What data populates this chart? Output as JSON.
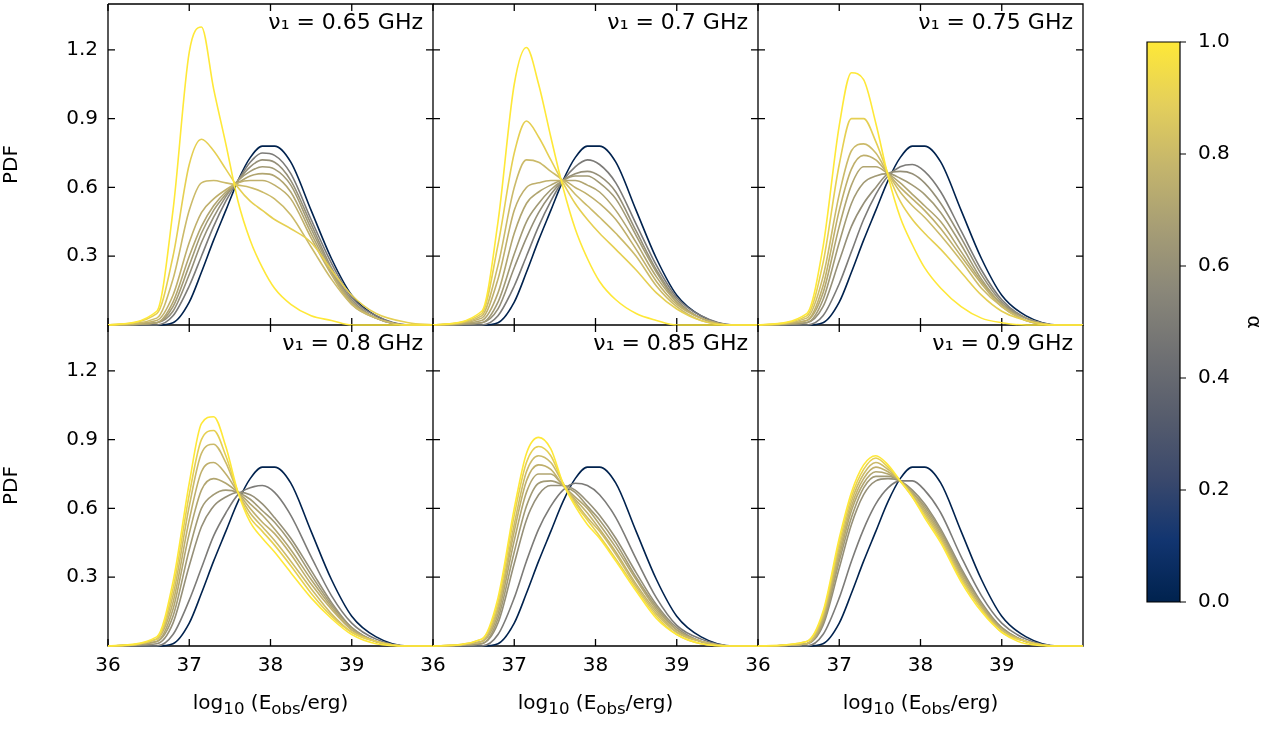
{
  "chart_data": [
    {
      "type": "line",
      "annotations": [
        "ν₁ = 0.65 GHz"
      ],
      "ylabel": "PDF",
      "tick_labels": "y",
      "xlim": [
        36,
        40
      ],
      "xticks": [
        36,
        37,
        38,
        39
      ],
      "ylim": [
        0,
        1.4
      ],
      "yticks": [
        0.3,
        0.6,
        0.9,
        1.2
      ],
      "x": [
        36,
        36.6,
        36.8,
        37.0,
        37.15,
        37.3,
        37.45,
        37.6,
        37.75,
        37.9,
        38.05,
        38.25,
        38.5,
        38.75,
        39.0,
        39.3,
        39.7,
        40
      ],
      "series": [
        {
          "color": "#00224e",
          "values": [
            0,
            0,
            0.01,
            0.1,
            0.23,
            0.37,
            0.5,
            0.63,
            0.73,
            0.78,
            0.78,
            0.71,
            0.5,
            0.29,
            0.13,
            0.04,
            0,
            0
          ]
        },
        {
          "color": "#7c7b78",
          "values": [
            0,
            0,
            0.04,
            0.17,
            0.3,
            0.43,
            0.54,
            0.63,
            0.71,
            0.75,
            0.74,
            0.66,
            0.46,
            0.27,
            0.12,
            0.04,
            0,
            0
          ]
        },
        {
          "color": "#958f78",
          "values": [
            0,
            0.01,
            0.06,
            0.22,
            0.36,
            0.47,
            0.56,
            0.63,
            0.69,
            0.72,
            0.71,
            0.63,
            0.44,
            0.25,
            0.11,
            0.03,
            0,
            0
          ]
        },
        {
          "color": "#a29a75",
          "values": [
            0,
            0.01,
            0.08,
            0.26,
            0.4,
            0.5,
            0.57,
            0.63,
            0.67,
            0.69,
            0.68,
            0.61,
            0.42,
            0.24,
            0.1,
            0.03,
            0,
            0
          ]
        },
        {
          "color": "#b1a570",
          "values": [
            0,
            0.01,
            0.1,
            0.3,
            0.43,
            0.52,
            0.58,
            0.62,
            0.65,
            0.66,
            0.65,
            0.58,
            0.4,
            0.23,
            0.1,
            0.03,
            0,
            0
          ]
        },
        {
          "color": "#bfaf6b",
          "values": [
            0,
            0.02,
            0.13,
            0.36,
            0.49,
            0.55,
            0.59,
            0.62,
            0.63,
            0.63,
            0.61,
            0.55,
            0.38,
            0.22,
            0.09,
            0.03,
            0,
            0
          ]
        },
        {
          "color": "#cbba69",
          "values": [
            0,
            0.03,
            0.2,
            0.5,
            0.62,
            0.63,
            0.62,
            0.61,
            0.6,
            0.58,
            0.55,
            0.48,
            0.34,
            0.2,
            0.09,
            0.03,
            0,
            0
          ]
        },
        {
          "color": "#e5cf52",
          "values": [
            0,
            0.05,
            0.3,
            0.7,
            0.81,
            0.76,
            0.68,
            0.6,
            0.54,
            0.5,
            0.46,
            0.42,
            0.36,
            0.24,
            0.13,
            0.05,
            0.01,
            0
          ]
        },
        {
          "color": "#fee838",
          "values": [
            0,
            0.06,
            0.5,
            1.19,
            1.3,
            1.03,
            0.79,
            0.54,
            0.37,
            0.25,
            0.16,
            0.09,
            0.04,
            0.02,
            0,
            0,
            0,
            0
          ]
        }
      ]
    },
    {
      "type": "line",
      "annotations": [
        "ν₁ = 0.7 GHz"
      ],
      "tick_labels": false,
      "xlim": [
        36,
        40
      ],
      "xticks": [
        36,
        37,
        38,
        39
      ],
      "ylim": [
        0,
        1.4
      ],
      "yticks": [
        0.3,
        0.6,
        0.9,
        1.2
      ],
      "x": [
        36,
        36.6,
        36.8,
        37.0,
        37.15,
        37.3,
        37.45,
        37.6,
        37.75,
        37.9,
        38.05,
        38.25,
        38.5,
        38.75,
        39.0,
        39.3,
        39.7,
        40
      ],
      "series": [
        {
          "color": "#00224e",
          "values": [
            0,
            0,
            0.01,
            0.1,
            0.23,
            0.37,
            0.5,
            0.63,
            0.73,
            0.78,
            0.78,
            0.71,
            0.5,
            0.29,
            0.13,
            0.04,
            0,
            0
          ]
        },
        {
          "color": "#7c7b78",
          "values": [
            0,
            0,
            0.04,
            0.17,
            0.3,
            0.43,
            0.54,
            0.63,
            0.69,
            0.72,
            0.7,
            0.62,
            0.44,
            0.26,
            0.12,
            0.04,
            0,
            0
          ]
        },
        {
          "color": "#958f78",
          "values": [
            0,
            0.01,
            0.07,
            0.25,
            0.38,
            0.49,
            0.57,
            0.63,
            0.66,
            0.67,
            0.65,
            0.58,
            0.41,
            0.24,
            0.11,
            0.03,
            0,
            0
          ]
        },
        {
          "color": "#a29a75",
          "values": [
            0,
            0.01,
            0.1,
            0.31,
            0.45,
            0.53,
            0.59,
            0.63,
            0.65,
            0.65,
            0.62,
            0.55,
            0.39,
            0.23,
            0.1,
            0.03,
            0,
            0
          ]
        },
        {
          "color": "#b1a570",
          "values": [
            0,
            0.02,
            0.14,
            0.4,
            0.53,
            0.58,
            0.61,
            0.63,
            0.63,
            0.61,
            0.58,
            0.5,
            0.36,
            0.21,
            0.1,
            0.03,
            0,
            0
          ]
        },
        {
          "color": "#bfaf6b",
          "values": [
            0,
            0.03,
            0.2,
            0.5,
            0.6,
            0.62,
            0.63,
            0.63,
            0.6,
            0.57,
            0.53,
            0.46,
            0.33,
            0.19,
            0.09,
            0.03,
            0,
            0
          ]
        },
        {
          "color": "#cbba69",
          "values": [
            0,
            0.04,
            0.26,
            0.6,
            0.72,
            0.71,
            0.67,
            0.63,
            0.57,
            0.52,
            0.47,
            0.4,
            0.3,
            0.17,
            0.08,
            0.02,
            0,
            0
          ]
        },
        {
          "color": "#e5cf52",
          "values": [
            0,
            0.05,
            0.35,
            0.75,
            0.89,
            0.82,
            0.72,
            0.62,
            0.53,
            0.46,
            0.4,
            0.33,
            0.24,
            0.14,
            0.07,
            0.02,
            0,
            0
          ]
        },
        {
          "color": "#fee838",
          "values": [
            0,
            0.06,
            0.45,
            1.05,
            1.21,
            1.05,
            0.82,
            0.6,
            0.42,
            0.29,
            0.19,
            0.11,
            0.05,
            0.02,
            0,
            0,
            0,
            0
          ]
        }
      ]
    },
    {
      "type": "line",
      "annotations": [
        "ν₁ = 0.75 GHz"
      ],
      "tick_labels": false,
      "xlim": [
        36,
        40
      ],
      "xticks": [
        36,
        37,
        38,
        39
      ],
      "ylim": [
        0,
        1.4
      ],
      "yticks": [
        0.3,
        0.6,
        0.9,
        1.2
      ],
      "x": [
        36,
        36.6,
        36.8,
        37.0,
        37.15,
        37.3,
        37.45,
        37.6,
        37.75,
        37.9,
        38.05,
        38.25,
        38.5,
        38.75,
        39.0,
        39.3,
        39.7,
        40
      ],
      "series": [
        {
          "color": "#00224e",
          "values": [
            0,
            0,
            0.01,
            0.1,
            0.23,
            0.37,
            0.5,
            0.63,
            0.73,
            0.78,
            0.78,
            0.71,
            0.5,
            0.29,
            0.13,
            0.04,
            0,
            0
          ]
        },
        {
          "color": "#7c7b78",
          "values": [
            0,
            0,
            0.04,
            0.18,
            0.32,
            0.46,
            0.57,
            0.65,
            0.69,
            0.7,
            0.67,
            0.58,
            0.41,
            0.24,
            0.11,
            0.03,
            0,
            0
          ]
        },
        {
          "color": "#958f78",
          "values": [
            0,
            0.01,
            0.08,
            0.28,
            0.43,
            0.53,
            0.6,
            0.66,
            0.67,
            0.66,
            0.62,
            0.53,
            0.38,
            0.22,
            0.1,
            0.03,
            0,
            0
          ]
        },
        {
          "color": "#a29a75",
          "values": [
            0,
            0.01,
            0.11,
            0.36,
            0.53,
            0.62,
            0.65,
            0.66,
            0.64,
            0.61,
            0.57,
            0.49,
            0.35,
            0.2,
            0.09,
            0.03,
            0,
            0
          ]
        },
        {
          "color": "#b1a570",
          "values": [
            0,
            0.02,
            0.14,
            0.43,
            0.61,
            0.69,
            0.69,
            0.66,
            0.62,
            0.57,
            0.52,
            0.45,
            0.32,
            0.19,
            0.09,
            0.02,
            0,
            0
          ]
        },
        {
          "color": "#bfaf6b",
          "values": [
            0,
            0.02,
            0.17,
            0.5,
            0.68,
            0.74,
            0.72,
            0.66,
            0.6,
            0.55,
            0.5,
            0.42,
            0.3,
            0.18,
            0.08,
            0.02,
            0,
            0
          ]
        },
        {
          "color": "#cbba69",
          "values": [
            0,
            0.03,
            0.21,
            0.57,
            0.76,
            0.79,
            0.75,
            0.66,
            0.58,
            0.52,
            0.47,
            0.39,
            0.28,
            0.16,
            0.08,
            0.02,
            0,
            0
          ]
        },
        {
          "color": "#e5cf52",
          "values": [
            0,
            0.04,
            0.27,
            0.7,
            0.9,
            0.9,
            0.8,
            0.66,
            0.54,
            0.46,
            0.4,
            0.33,
            0.23,
            0.13,
            0.06,
            0.02,
            0,
            0
          ]
        },
        {
          "color": "#fee838",
          "values": [
            0,
            0.05,
            0.34,
            0.87,
            1.1,
            1.07,
            0.88,
            0.65,
            0.47,
            0.35,
            0.25,
            0.16,
            0.08,
            0.03,
            0.01,
            0,
            0,
            0
          ]
        }
      ]
    },
    {
      "type": "line",
      "annotations": [
        "ν₁ = 0.8 GHz"
      ],
      "ylabel": "PDF",
      "xlabel": "log$_{10}$ (E$_{obs}$/erg)",
      "xlim": [
        36,
        40
      ],
      "xticks": [
        36,
        37,
        38,
        39
      ],
      "ylim": [
        0,
        1.4
      ],
      "yticks": [
        0.3,
        0.6,
        0.9,
        1.2
      ],
      "x": [
        36,
        36.6,
        36.8,
        37.0,
        37.15,
        37.3,
        37.45,
        37.6,
        37.75,
        37.9,
        38.05,
        38.25,
        38.5,
        38.75,
        39.0,
        39.3,
        39.7,
        40
      ],
      "series": [
        {
          "color": "#00224e",
          "values": [
            0,
            0,
            0.01,
            0.1,
            0.23,
            0.37,
            0.5,
            0.63,
            0.73,
            0.78,
            0.78,
            0.71,
            0.5,
            0.29,
            0.13,
            0.04,
            0,
            0
          ]
        },
        {
          "color": "#7c7b78",
          "values": [
            0,
            0,
            0.05,
            0.2,
            0.34,
            0.48,
            0.58,
            0.66,
            0.69,
            0.7,
            0.67,
            0.57,
            0.39,
            0.22,
            0.1,
            0.03,
            0,
            0
          ]
        },
        {
          "color": "#958f78",
          "values": [
            0,
            0.01,
            0.1,
            0.35,
            0.52,
            0.61,
            0.65,
            0.67,
            0.66,
            0.62,
            0.56,
            0.47,
            0.33,
            0.19,
            0.08,
            0.02,
            0,
            0
          ]
        },
        {
          "color": "#a29a75",
          "values": [
            0,
            0.02,
            0.13,
            0.42,
            0.6,
            0.66,
            0.68,
            0.67,
            0.64,
            0.59,
            0.54,
            0.45,
            0.31,
            0.18,
            0.08,
            0.02,
            0,
            0
          ]
        },
        {
          "color": "#b1a570",
          "values": [
            0,
            0.02,
            0.16,
            0.49,
            0.68,
            0.73,
            0.71,
            0.67,
            0.62,
            0.57,
            0.51,
            0.42,
            0.29,
            0.17,
            0.07,
            0.02,
            0,
            0
          ]
        },
        {
          "color": "#bfaf6b",
          "values": [
            0,
            0.03,
            0.19,
            0.55,
            0.76,
            0.8,
            0.75,
            0.67,
            0.6,
            0.54,
            0.49,
            0.4,
            0.27,
            0.16,
            0.07,
            0.02,
            0,
            0
          ]
        },
        {
          "color": "#cbba69",
          "values": [
            0,
            0.03,
            0.22,
            0.61,
            0.84,
            0.88,
            0.8,
            0.67,
            0.58,
            0.52,
            0.46,
            0.37,
            0.25,
            0.14,
            0.06,
            0.02,
            0,
            0
          ]
        },
        {
          "color": "#e5cf52",
          "values": [
            0,
            0.03,
            0.25,
            0.66,
            0.9,
            0.94,
            0.83,
            0.67,
            0.56,
            0.5,
            0.44,
            0.35,
            0.23,
            0.13,
            0.06,
            0.02,
            0,
            0
          ]
        },
        {
          "color": "#fee838",
          "values": [
            0,
            0.04,
            0.28,
            0.71,
            0.97,
            1.0,
            0.87,
            0.67,
            0.54,
            0.47,
            0.41,
            0.32,
            0.21,
            0.12,
            0.05,
            0.01,
            0,
            0
          ]
        }
      ]
    },
    {
      "type": "line",
      "annotations": [
        "ν₁ = 0.85 GHz"
      ],
      "xlabel": "log$_{10}$ (E$_{obs}$/erg)",
      "tick_labels": "x",
      "xlim": [
        36,
        40
      ],
      "xticks": [
        36,
        37,
        38,
        39
      ],
      "ylim": [
        0,
        1.4
      ],
      "yticks": [
        0.3,
        0.6,
        0.9,
        1.2
      ],
      "x": [
        36,
        36.6,
        36.8,
        37.0,
        37.15,
        37.3,
        37.45,
        37.6,
        37.75,
        37.9,
        38.05,
        38.25,
        38.5,
        38.75,
        39.0,
        39.3,
        39.7,
        40
      ],
      "series": [
        {
          "color": "#00224e",
          "values": [
            0,
            0,
            0.01,
            0.1,
            0.23,
            0.37,
            0.5,
            0.63,
            0.73,
            0.78,
            0.78,
            0.71,
            0.5,
            0.29,
            0.13,
            0.04,
            0,
            0
          ]
        },
        {
          "color": "#7c7b78",
          "values": [
            0,
            0,
            0.05,
            0.21,
            0.37,
            0.51,
            0.61,
            0.68,
            0.71,
            0.7,
            0.66,
            0.56,
            0.38,
            0.21,
            0.09,
            0.03,
            0,
            0
          ]
        },
        {
          "color": "#958f78",
          "values": [
            0,
            0.01,
            0.1,
            0.36,
            0.55,
            0.66,
            0.7,
            0.7,
            0.68,
            0.63,
            0.57,
            0.47,
            0.32,
            0.18,
            0.08,
            0.02,
            0,
            0
          ]
        },
        {
          "color": "#a29a75",
          "values": [
            0,
            0.01,
            0.12,
            0.41,
            0.61,
            0.71,
            0.72,
            0.7,
            0.67,
            0.61,
            0.55,
            0.45,
            0.3,
            0.17,
            0.07,
            0.02,
            0,
            0
          ]
        },
        {
          "color": "#b1a570",
          "values": [
            0,
            0.02,
            0.14,
            0.46,
            0.67,
            0.75,
            0.75,
            0.7,
            0.65,
            0.6,
            0.53,
            0.43,
            0.29,
            0.16,
            0.07,
            0.02,
            0,
            0
          ]
        },
        {
          "color": "#bfaf6b",
          "values": [
            0,
            0.02,
            0.16,
            0.5,
            0.72,
            0.79,
            0.77,
            0.7,
            0.64,
            0.58,
            0.51,
            0.41,
            0.27,
            0.15,
            0.06,
            0.02,
            0,
            0
          ]
        },
        {
          "color": "#cbba69",
          "values": [
            0,
            0.02,
            0.17,
            0.53,
            0.76,
            0.83,
            0.8,
            0.71,
            0.63,
            0.56,
            0.5,
            0.4,
            0.26,
            0.14,
            0.06,
            0.02,
            0,
            0
          ]
        },
        {
          "color": "#e5cf52",
          "values": [
            0,
            0.03,
            0.19,
            0.57,
            0.8,
            0.87,
            0.83,
            0.71,
            0.62,
            0.55,
            0.48,
            0.38,
            0.25,
            0.13,
            0.05,
            0.01,
            0,
            0
          ]
        },
        {
          "color": "#fee838",
          "values": [
            0,
            0.03,
            0.21,
            0.6,
            0.84,
            0.91,
            0.86,
            0.71,
            0.61,
            0.53,
            0.47,
            0.37,
            0.24,
            0.12,
            0.05,
            0.01,
            0,
            0
          ]
        }
      ]
    },
    {
      "type": "line",
      "annotations": [
        "ν₁ = 0.9 GHz"
      ],
      "xlabel": "log$_{10}$ (E$_{obs}$/erg)",
      "tick_labels": "x",
      "xlim": [
        36,
        40
      ],
      "xticks": [
        36,
        37,
        38,
        39
      ],
      "ylim": [
        0,
        1.4
      ],
      "yticks": [
        0.3,
        0.6,
        0.9,
        1.2
      ],
      "clabel": "α",
      "clim": [
        0,
        1
      ],
      "cticks": [
        {
          "value": 0,
          "label": "0.0"
        },
        0.2,
        0.4,
        0.6,
        0.8,
        {
          "value": 1,
          "label": "1.0"
        }
      ],
      "x": [
        36,
        36.6,
        36.8,
        37.0,
        37.15,
        37.3,
        37.45,
        37.6,
        37.75,
        37.9,
        38.05,
        38.25,
        38.5,
        38.75,
        39.0,
        39.3,
        39.7,
        40
      ],
      "series": [
        {
          "color": "#00224e",
          "values": [
            0,
            0,
            0.01,
            0.1,
            0.23,
            0.37,
            0.5,
            0.63,
            0.73,
            0.78,
            0.78,
            0.71,
            0.5,
            0.29,
            0.13,
            0.04,
            0,
            0
          ]
        },
        {
          "color": "#7c7b78",
          "values": [
            0,
            0,
            0.05,
            0.21,
            0.37,
            0.51,
            0.62,
            0.69,
            0.72,
            0.72,
            0.68,
            0.58,
            0.39,
            0.22,
            0.1,
            0.03,
            0,
            0
          ]
        },
        {
          "color": "#958f78",
          "values": [
            0,
            0.01,
            0.09,
            0.34,
            0.53,
            0.66,
            0.72,
            0.73,
            0.72,
            0.68,
            0.62,
            0.51,
            0.34,
            0.19,
            0.08,
            0.02,
            0,
            0
          ]
        },
        {
          "color": "#a29a75",
          "values": [
            0,
            0.01,
            0.1,
            0.37,
            0.56,
            0.69,
            0.74,
            0.74,
            0.72,
            0.67,
            0.61,
            0.5,
            0.33,
            0.18,
            0.08,
            0.02,
            0,
            0
          ]
        },
        {
          "color": "#b1a570",
          "values": [
            0,
            0.01,
            0.11,
            0.39,
            0.59,
            0.71,
            0.76,
            0.75,
            0.72,
            0.67,
            0.6,
            0.49,
            0.32,
            0.18,
            0.07,
            0.02,
            0,
            0
          ]
        },
        {
          "color": "#bfaf6b",
          "values": [
            0,
            0.01,
            0.12,
            0.41,
            0.61,
            0.73,
            0.78,
            0.76,
            0.72,
            0.66,
            0.59,
            0.48,
            0.31,
            0.17,
            0.07,
            0.02,
            0,
            0
          ]
        },
        {
          "color": "#cbba69",
          "values": [
            0,
            0.01,
            0.13,
            0.43,
            0.63,
            0.75,
            0.8,
            0.77,
            0.72,
            0.66,
            0.58,
            0.47,
            0.3,
            0.16,
            0.07,
            0.02,
            0,
            0
          ]
        },
        {
          "color": "#e5cf52",
          "values": [
            0,
            0.02,
            0.14,
            0.45,
            0.65,
            0.77,
            0.82,
            0.78,
            0.72,
            0.65,
            0.57,
            0.46,
            0.29,
            0.16,
            0.06,
            0.02,
            0,
            0
          ]
        },
        {
          "color": "#fee838",
          "values": [
            0,
            0.02,
            0.15,
            0.47,
            0.67,
            0.79,
            0.83,
            0.79,
            0.72,
            0.65,
            0.56,
            0.45,
            0.28,
            0.15,
            0.06,
            0.01,
            0,
            0
          ]
        }
      ]
    }
  ]
}
